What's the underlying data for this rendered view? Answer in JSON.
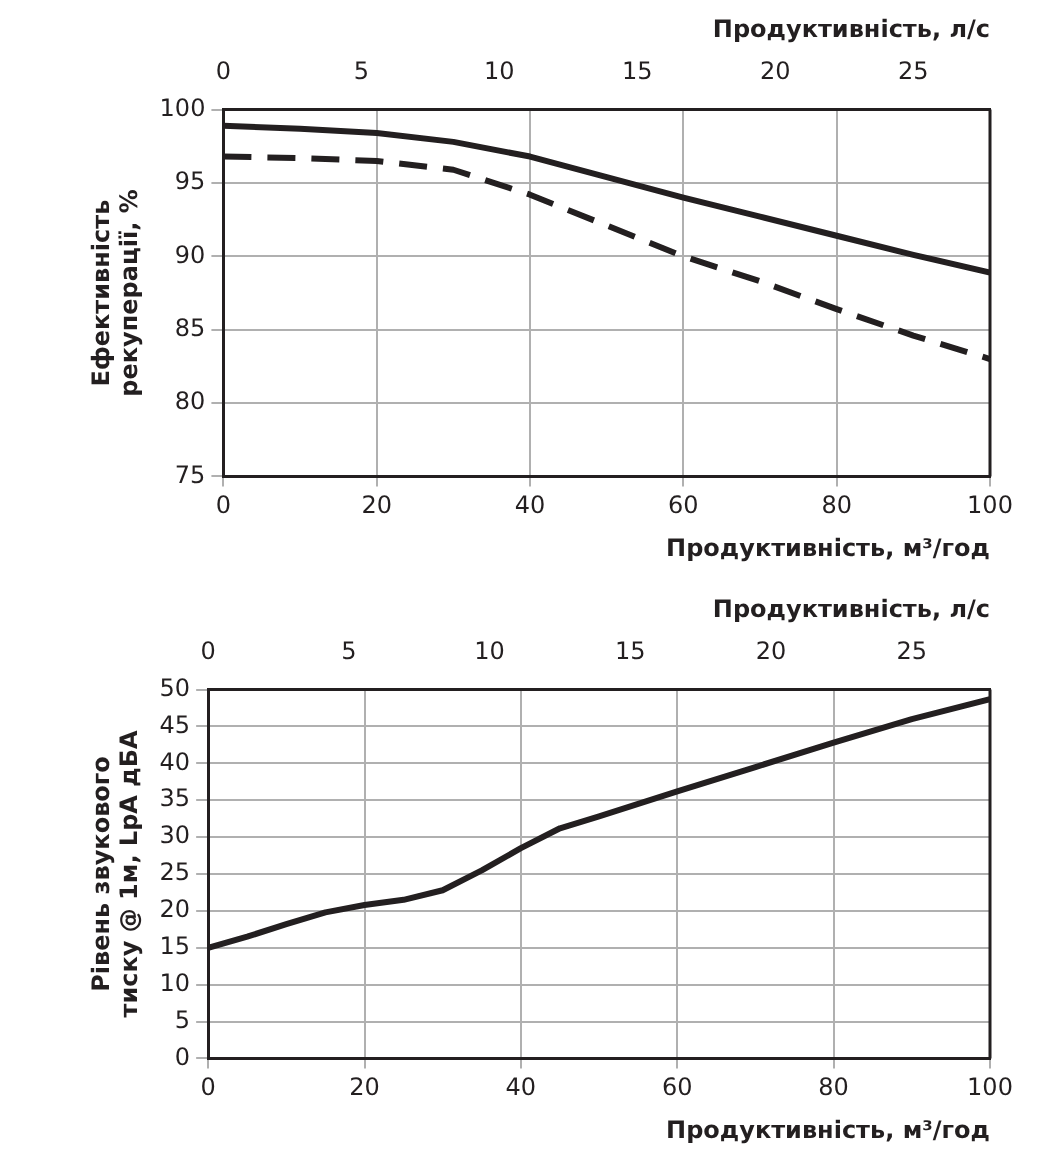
{
  "chart_data": [
    {
      "type": "line",
      "xlabel": "Продуктивність, м³/год",
      "x2label": "Продуктивність, л/с",
      "ylabel": "Ефективність\nрекуперації, %",
      "xlim": [
        0,
        100
      ],
      "xticks": [
        0,
        20,
        40,
        60,
        80,
        100
      ],
      "x2lim": [
        0,
        27.78
      ],
      "x2ticks": [
        0,
        5,
        10,
        15,
        20,
        25
      ],
      "ylim": [
        75,
        100
      ],
      "yticks": [
        75,
        80,
        85,
        90,
        95,
        100
      ],
      "grid": true,
      "x": [
        0,
        10,
        20,
        30,
        40,
        50,
        60,
        70,
        80,
        90,
        100
      ],
      "series": [
        {
          "color": "#231f20",
          "line_style": "solid",
          "values": [
            98.9,
            98.7,
            98.4,
            97.8,
            96.8,
            95.4,
            94.0,
            92.7,
            91.4,
            90.1,
            88.9
          ]
        },
        {
          "color": "#231f20",
          "line_style": "dashed",
          "values": [
            96.8,
            96.7,
            96.5,
            95.9,
            94.2,
            92.1,
            90.0,
            88.3,
            86.4,
            84.6,
            83.0
          ]
        }
      ]
    },
    {
      "type": "line",
      "xlabel": "Продуктивність, м³/год",
      "x2label": "Продуктивність, л/с",
      "ylabel": "Рівень звукового\nтиску @ 1м, LpA дБА",
      "xlim": [
        0,
        100
      ],
      "xticks": [
        0,
        20,
        40,
        60,
        80,
        100
      ],
      "x2lim": [
        0,
        27.78
      ],
      "x2ticks": [
        0,
        5,
        10,
        15,
        20,
        25
      ],
      "ylim": [
        0,
        50
      ],
      "yticks": [
        0,
        5,
        10,
        15,
        20,
        25,
        30,
        35,
        40,
        45,
        50
      ],
      "grid": true,
      "x": [
        0,
        5,
        10,
        15,
        20,
        25,
        30,
        35,
        40,
        45,
        50,
        60,
        70,
        80,
        90,
        100
      ],
      "series": [
        {
          "color": "#231f20",
          "line_style": "solid",
          "values": [
            15,
            16.5,
            18.2,
            19.8,
            20.8,
            21.5,
            22.8,
            25.5,
            28.5,
            31.2,
            32.8,
            36.2,
            39.5,
            42.8,
            46.0,
            48.7
          ]
        }
      ]
    }
  ]
}
